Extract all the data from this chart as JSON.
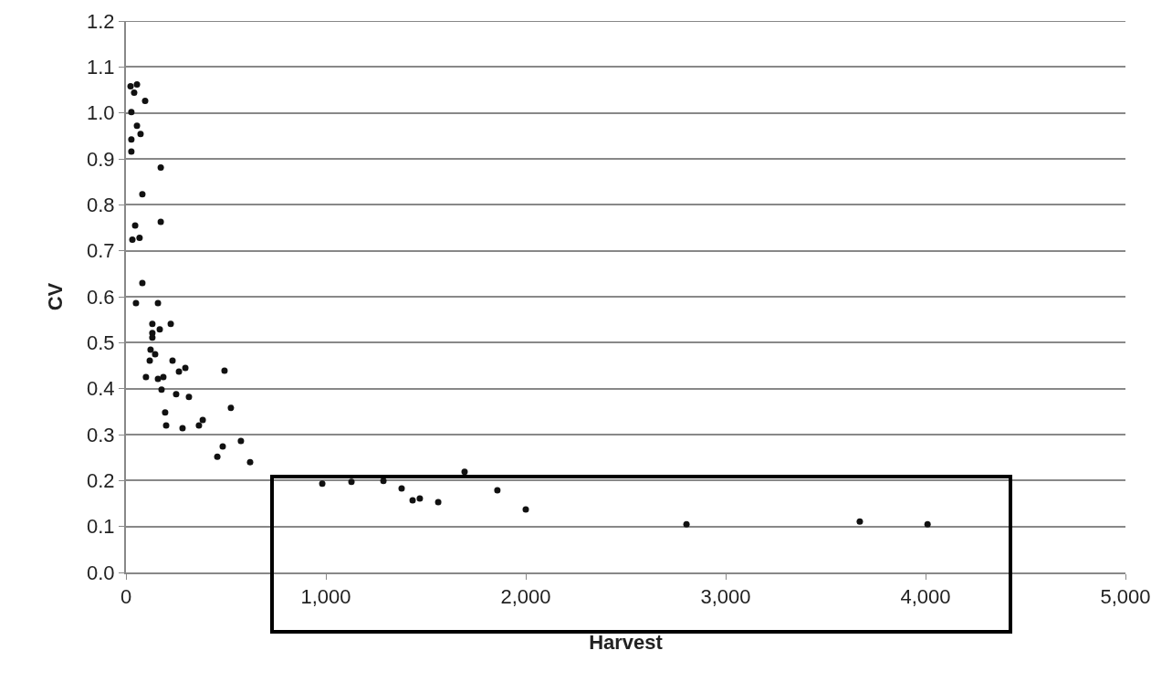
{
  "chart_data": {
    "type": "scatter",
    "xlabel": "Harvest",
    "ylabel": "CV",
    "x": [
      23,
      55,
      41,
      96,
      27,
      55,
      73,
      27,
      27,
      174,
      82,
      174,
      46,
      68,
      32,
      82,
      50,
      160,
      132,
      224,
      169,
      132,
      132,
      123,
      146,
      119,
      233,
      100,
      265,
      297,
      493,
      187,
      178,
      160,
      251,
      315,
      525,
      196,
      201,
      283,
      365,
      384,
      575,
      484,
      457,
      621,
      982,
      1128,
      1288,
      1379,
      1434,
      1470,
      1562,
      1694,
      1858,
      2000,
      2804,
      3671,
      4010
    ],
    "values": [
      1.058,
      1.062,
      1.044,
      1.026,
      1.002,
      0.972,
      0.954,
      0.942,
      0.916,
      0.881,
      0.823,
      0.763,
      0.755,
      0.728,
      0.724,
      0.63,
      0.586,
      0.586,
      0.541,
      0.541,
      0.529,
      0.521,
      0.511,
      0.485,
      0.475,
      0.461,
      0.461,
      0.425,
      0.437,
      0.445,
      0.439,
      0.425,
      0.398,
      0.421,
      0.388,
      0.382,
      0.358,
      0.348,
      0.32,
      0.314,
      0.32,
      0.332,
      0.286,
      0.274,
      0.252,
      0.24,
      0.193,
      0.197,
      0.199,
      0.183,
      0.157,
      0.161,
      0.153,
      0.219,
      0.179,
      0.137,
      0.105,
      0.111,
      0.105
    ],
    "color": "#111111",
    "marker": "circle",
    "grid": "y",
    "xlim": [
      0,
      5000
    ],
    "xticks": [
      0,
      {
        "value": 1000,
        "label": "1,000"
      },
      {
        "value": 2000,
        "label": "2,000"
      },
      {
        "value": 3000,
        "label": "3,000"
      },
      {
        "value": 4000,
        "label": "4,000"
      },
      {
        "value": 5000,
        "label": "5,000"
      }
    ],
    "ylim": [
      0,
      1.2
    ],
    "yticks": [
      {
        "value": 0,
        "label": "0.0"
      },
      0.1,
      0.2,
      0.3,
      0.4,
      0.5,
      0.6,
      0.7,
      0.8,
      0.9,
      {
        "value": 1,
        "label": "1.0"
      },
      1.1,
      1.2
    ]
  }
}
